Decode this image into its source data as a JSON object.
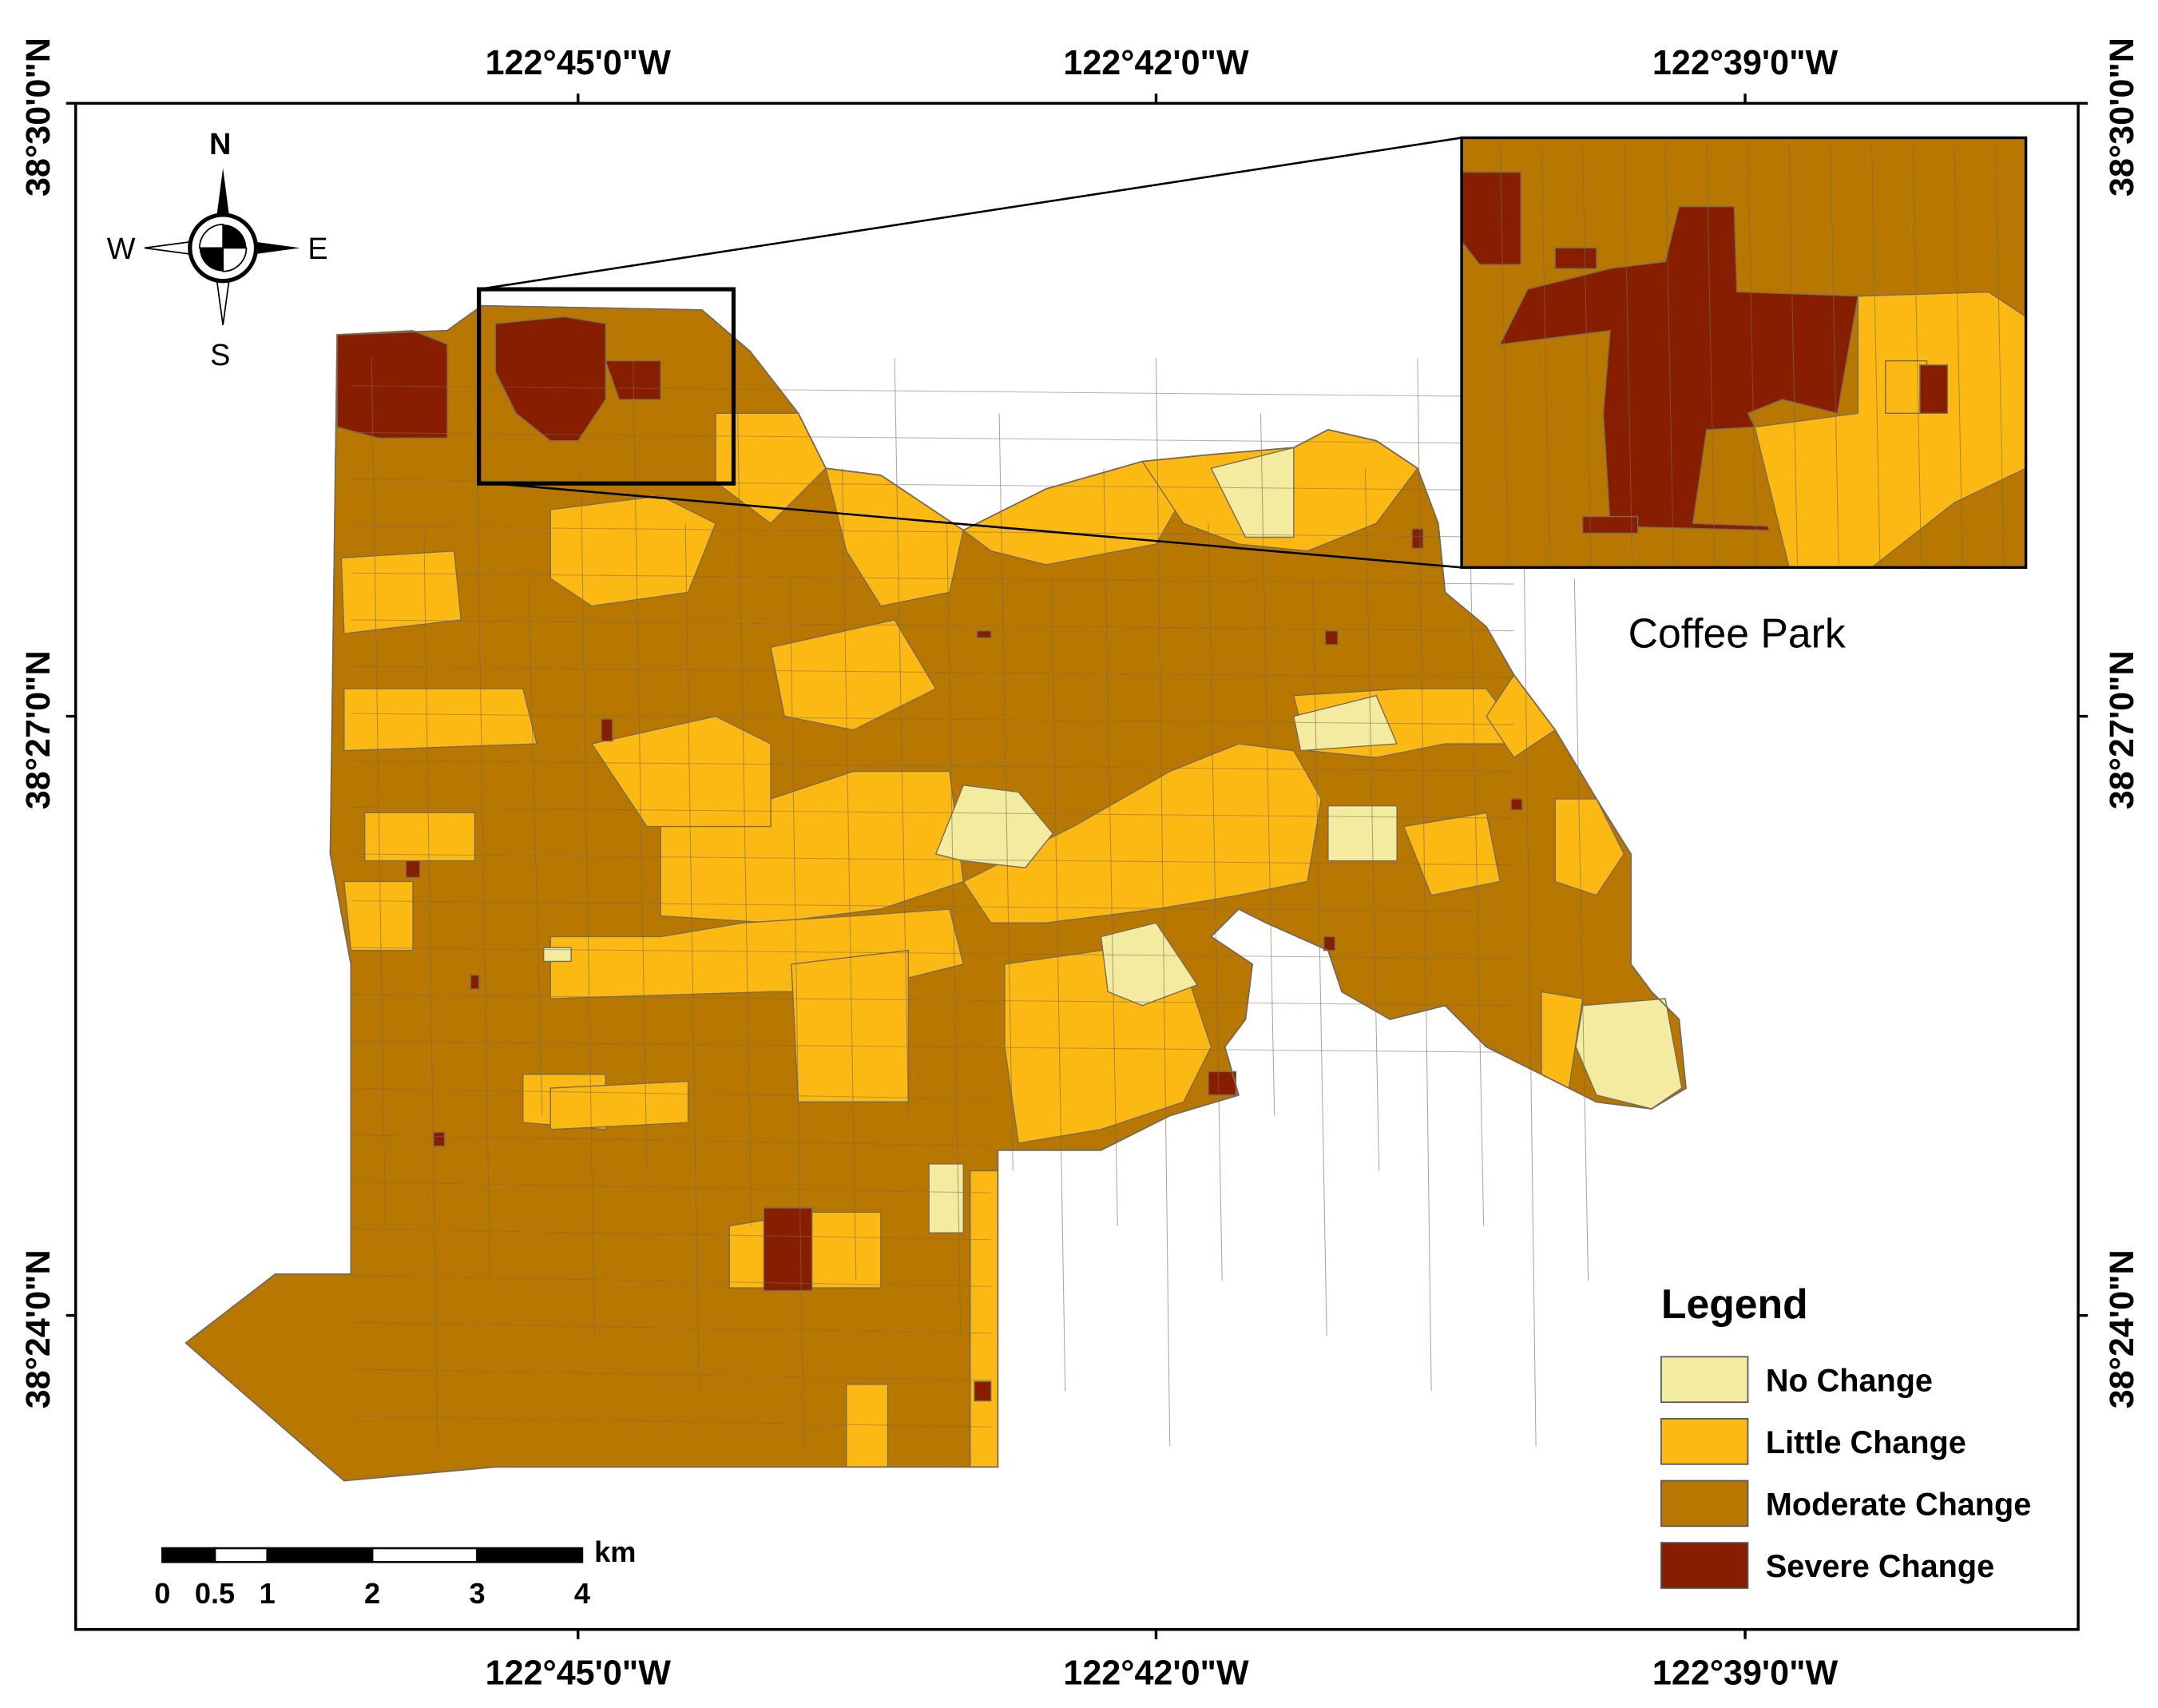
{
  "map": {
    "lon_labels": [
      "122°45'0\"W",
      "122°42'0\"W",
      "122°39'0\"W"
    ],
    "lat_labels": [
      "38°30'0\"N",
      "38°27'0\"N",
      "38°24'0\"N"
    ],
    "compass": {
      "north": "N",
      "south": "S",
      "east": "E",
      "west": "W"
    },
    "inset_label": "Coffee Park",
    "scale_bar": {
      "unit": "km",
      "ticks": [
        0,
        0.5,
        1,
        2,
        3,
        4
      ]
    },
    "legend": {
      "title": "Legend",
      "items": [
        {
          "label": "No Change",
          "color": "#f2eba0"
        },
        {
          "label": "Little Change",
          "color": "#fcb813"
        },
        {
          "label": "Moderate Change",
          "color": "#b87800"
        },
        {
          "label": "Severe Change",
          "color": "#881e00"
        }
      ]
    }
  }
}
